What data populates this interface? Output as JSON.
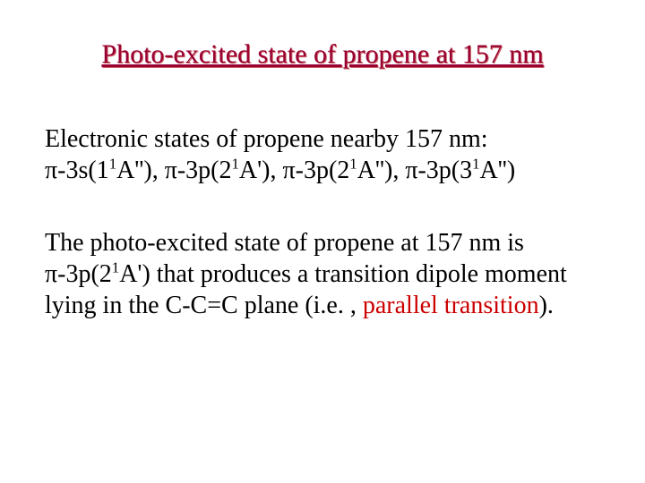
{
  "title": "Photo-excited state of propene at 157 nm",
  "para1": {
    "line1": "Electronic states of propene nearby 157 nm:",
    "s1a": "π-3s(1",
    "s1b": "1",
    "s1c": "A''), ",
    "s2a": "π-3p(2",
    "s2b": "1",
    "s2c": "A'), ",
    "s3a": "π-3p(2",
    "s3b": "1",
    "s3c": "A''), ",
    "s4a": "π-3p(3",
    "s4b": "1",
    "s4c": "A'')"
  },
  "para2": {
    "t1": "The photo-excited state of propene at 157 nm is ",
    "sa": "π-3p(2",
    "sb": "1",
    "sc": "A')",
    "t2": " that produces a transition dipole moment lying in the C-C=C plane (i.e. , ",
    "red": "parallel transition",
    "t3": ")."
  }
}
